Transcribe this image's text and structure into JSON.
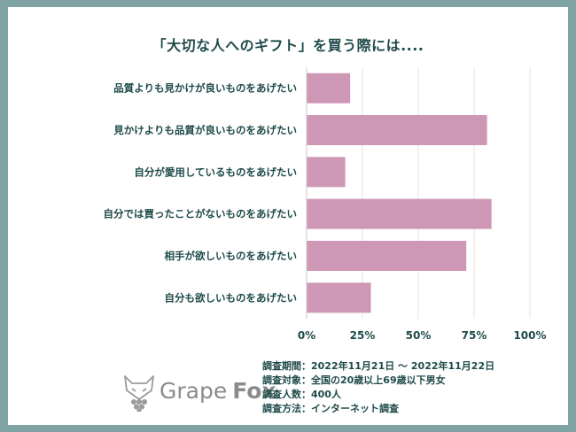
{
  "chart_data": {
    "type": "bar",
    "orientation": "horizontal",
    "title": "「大切な人へのギフト」を買う際には....",
    "categories": [
      "品質よりも見かけが良いものをあげたい",
      "見かけよりも品質が良いものをあげたい",
      "自分が愛用しているものをあげたい",
      "自分では買ったことがないものをあげたい",
      "相手が欲しいものをあげたい",
      "自分も欲しいものをあげたい"
    ],
    "values": [
      19.5,
      80.8,
      17.3,
      82.8,
      71.5,
      28.8
    ],
    "xlim": [
      0,
      100
    ],
    "x_ticks": [
      "0%",
      "25%",
      "50%",
      "75%",
      "100%"
    ],
    "bar_color": "#cf97b6",
    "grid": true
  },
  "survey": {
    "period": "調査期間：2022年11月21日 〜 2022年11月22日",
    "target": "調査対象：全国の20歳以上69歳以下男女",
    "count": "調査人数：400人",
    "method": "調査方法：インターネット調査"
  },
  "brand": {
    "name1": "Grape",
    "name2": "Fox",
    "icon": "fox-grape-logo"
  },
  "colors": {
    "frame": "#7fa3a3",
    "text": "#1f4a4a",
    "grid": "#e3e3e3",
    "bar": "#cf97b6"
  }
}
